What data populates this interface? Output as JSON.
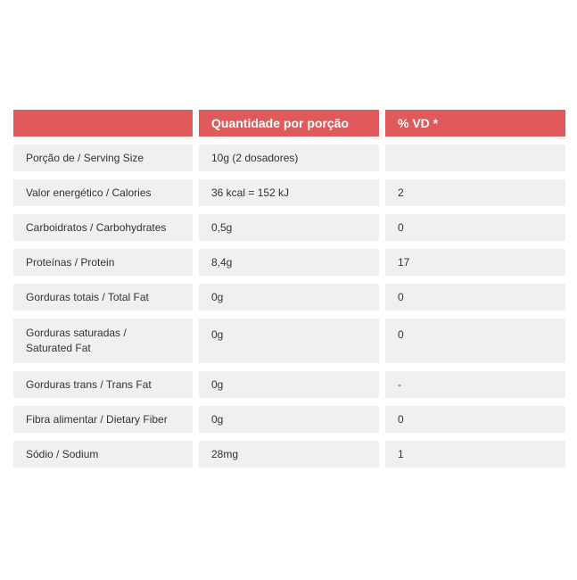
{
  "header": {
    "col1": "",
    "col2": "Quantidade por porção",
    "col3": "% VD *"
  },
  "colors": {
    "header_bg": "#e05a5b",
    "cell_bg": "#f0f0f0",
    "text": "#333333"
  },
  "rows": [
    {
      "name": "Porção de / Serving Size",
      "amount": "10g (2 dosadores)",
      "dv": ""
    },
    {
      "name": "Valor energético / Calories",
      "amount": "36 kcal = 152 kJ",
      "dv": "2"
    },
    {
      "name": "Carboidratos / Carbohydrates",
      "amount": "0,5g",
      "dv": "0"
    },
    {
      "name": "Proteínas / Protein",
      "amount": "8,4g",
      "dv": "17"
    },
    {
      "name": "Gorduras totais / Total Fat",
      "amount": "0g",
      "dv": "0"
    },
    {
      "name": "Gorduras saturadas / Saturated Fat",
      "amount": "0g",
      "dv": "0"
    },
    {
      "name": "Gorduras trans / Trans Fat",
      "amount": "0g",
      "dv": "-"
    },
    {
      "name": "Fibra alimentar / Dietary Fiber",
      "amount": "0g",
      "dv": "0"
    },
    {
      "name": "Sódio / Sodium",
      "amount": "28mg",
      "dv": "1"
    }
  ]
}
